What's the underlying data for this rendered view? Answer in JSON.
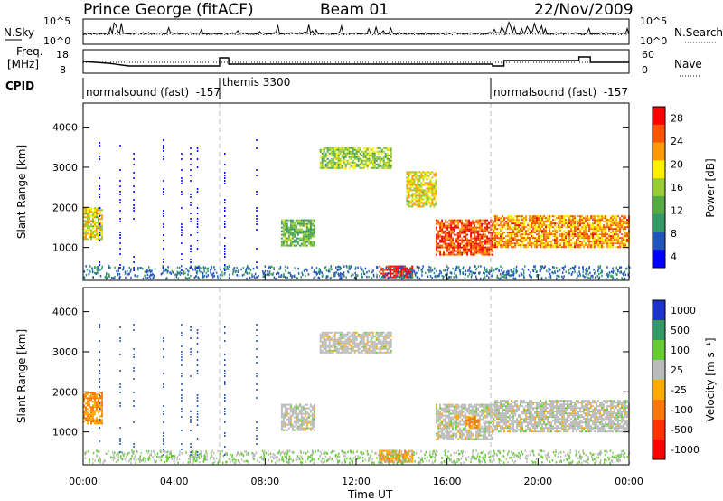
{
  "header": {
    "station": "Prince George (fitACF)",
    "beam": "Beam 01",
    "date": "22/Nov/2009"
  },
  "top_panels": {
    "noise": {
      "left_label": "N.Sky",
      "right_label": "N.Search",
      "left_ticks": [
        "10^5",
        "10^0"
      ],
      "right_ticks": [
        "10^5",
        "10^0"
      ]
    },
    "freq": {
      "left_label_1": "Freq.",
      "left_label_2": "[MHz]",
      "left_ticks": [
        "18",
        "8"
      ],
      "right_label": "Nave",
      "right_ticks": [
        "60",
        "0"
      ]
    },
    "cpid": {
      "label": "CPID",
      "segments": [
        {
          "text": "normalsound (fast)  -157",
          "start_hour": 0
        },
        {
          "text": "themis 3300",
          "start_hour": 6
        },
        {
          "text": "normalsound (fast)  -157",
          "start_hour": 18
        }
      ]
    }
  },
  "x_axis": {
    "label": "Time UT",
    "ticks": [
      "00:00",
      "04:00",
      "08:00",
      "12:00",
      "16:00",
      "20:00",
      "00:00"
    ]
  },
  "power_colorbar": {
    "label": "Power [dB]",
    "ticks": [
      "28",
      "24",
      "20",
      "16",
      "12",
      "8",
      "4"
    ]
  },
  "velocity_colorbar": {
    "label": "Velocity [m s⁻¹]",
    "ticks": [
      "1000",
      "500",
      "100",
      "25",
      "-25",
      "-100",
      "-500",
      "-1000"
    ]
  },
  "y_axis": {
    "label": "Slant Range [km]",
    "ticks": [
      "4000",
      "3000",
      "2000",
      "1000"
    ]
  },
  "chart_data": [
    {
      "type": "heatmap",
      "title": "",
      "quantity": "Power",
      "xlabel": "Time UT",
      "ylabel": "Slant Range [km]",
      "xlim_hours": [
        0,
        24
      ],
      "ylim_km": [
        180,
        4600
      ],
      "colorbar_label": "Power [dB]",
      "colorbar_range": [
        0,
        30
      ],
      "colors": [
        "#0000ff",
        "#2255bb",
        "#339966",
        "#55aa44",
        "#99cc33",
        "#ffee00",
        "#ff9900",
        "#ff5500",
        "#ff0000"
      ],
      "regions": [
        {
          "t": [
            0.0,
            0.8
          ],
          "r": [
            1200,
            2000
          ],
          "value": 18
        },
        {
          "t": [
            8.7,
            10.2
          ],
          "r": [
            1050,
            1700
          ],
          "value": 12
        },
        {
          "t": [
            10.4,
            13.5
          ],
          "r": [
            3000,
            3500
          ],
          "value": 14
        },
        {
          "t": [
            13.0,
            14.5
          ],
          "r": [
            250,
            550
          ],
          "value": 28
        },
        {
          "t": [
            14.2,
            15.5
          ],
          "r": [
            2000,
            2900
          ],
          "value": 18
        },
        {
          "t": [
            15.5,
            18.0
          ],
          "r": [
            800,
            1700
          ],
          "value": 26
        },
        {
          "t": [
            18.0,
            24.0
          ],
          "r": [
            1000,
            1800
          ],
          "value": 22
        }
      ]
    },
    {
      "type": "heatmap",
      "title": "",
      "quantity": "Velocity",
      "xlabel": "Time UT",
      "ylabel": "Slant Range [km]",
      "xlim_hours": [
        0,
        24
      ],
      "ylim_km": [
        180,
        4600
      ],
      "colorbar_label": "Velocity [m s⁻¹]",
      "colorbar_range": [
        -1000,
        1000
      ],
      "colors": [
        "#1a33cc",
        "#339966",
        "#66cc33",
        "#bbbbbb",
        "#ffaa00",
        "#ff7700",
        "#ff3300",
        "#ff0000"
      ],
      "regions": [
        {
          "t": [
            0.0,
            0.8
          ],
          "r": [
            1200,
            2000
          ],
          "value": -100
        },
        {
          "t": [
            8.7,
            10.2
          ],
          "r": [
            1050,
            1700
          ],
          "value": 0
        },
        {
          "t": [
            10.4,
            13.5
          ],
          "r": [
            3000,
            3500
          ],
          "value": 0
        },
        {
          "t": [
            13.0,
            14.5
          ],
          "r": [
            250,
            550
          ],
          "value": -100
        },
        {
          "t": [
            15.5,
            18.0
          ],
          "r": [
            800,
            1700
          ],
          "value": 0
        },
        {
          "t": [
            16.8,
            17.4
          ],
          "r": [
            1100,
            1400
          ],
          "value": -100
        },
        {
          "t": [
            18.0,
            24.0
          ],
          "r": [
            1000,
            1800
          ],
          "value": 0
        }
      ]
    }
  ]
}
